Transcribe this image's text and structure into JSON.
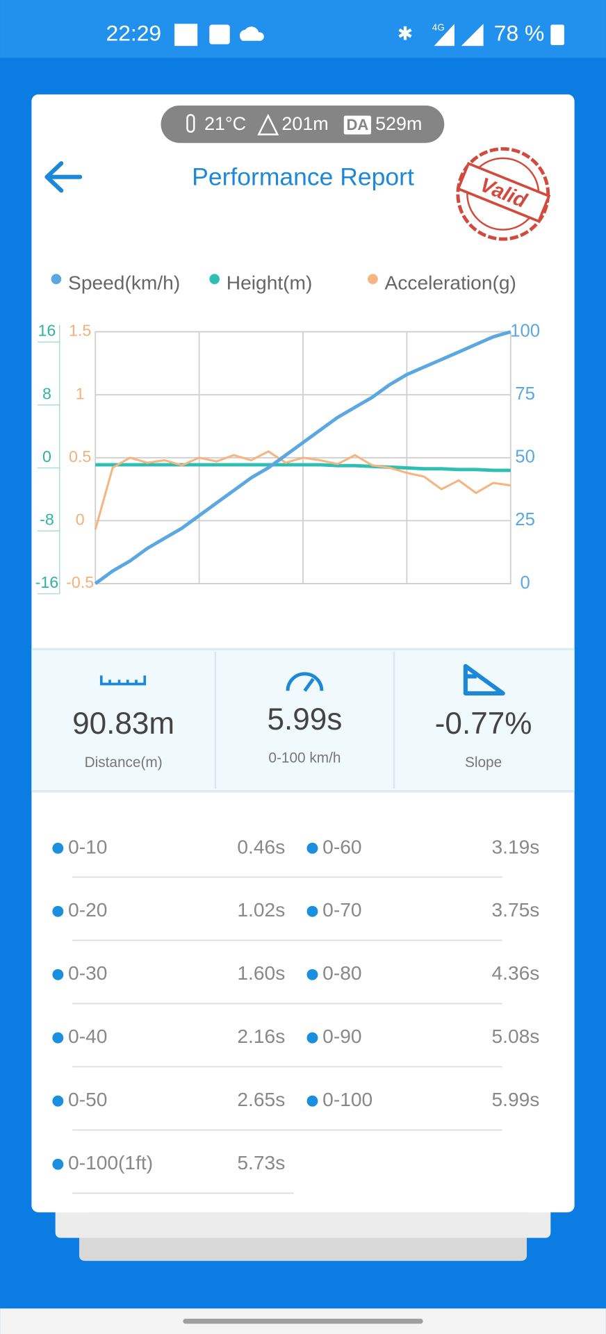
{
  "status_bar": {
    "time": "22:29",
    "network": "4G",
    "battery": "78 %"
  },
  "conditions": {
    "temperature": "21°C",
    "altitude": "201m",
    "da_label": "DA",
    "density_altitude": "529m"
  },
  "header": {
    "title": "Performance Report",
    "stamp": "Valid"
  },
  "chart_data": {
    "type": "line",
    "series": [
      {
        "name": "Speed(km/h)",
        "color": "#5aa7e2",
        "axis": "y2",
        "values": [
          0,
          5,
          9,
          14,
          18,
          22,
          27,
          32,
          37,
          42,
          46,
          51,
          56,
          61,
          66,
          70,
          74,
          79,
          83,
          86,
          89,
          92,
          95,
          98,
          100
        ]
      },
      {
        "name": "Height(m)",
        "color": "#2fbfb2",
        "values": [
          -0.9,
          -0.9,
          -0.9,
          -0.9,
          -0.9,
          -0.9,
          -0.9,
          -0.9,
          -0.9,
          -0.9,
          -0.9,
          -0.9,
          -0.9,
          -0.9,
          -1,
          -1,
          -1.1,
          -1.2,
          -1.3,
          -1.4,
          -1.4,
          -1.5,
          -1.5,
          -1.6,
          -1.6
        ]
      },
      {
        "name": "Acceleration(g)",
        "color": "#f6b580",
        "axis": "y3",
        "values": [
          -0.07,
          0.42,
          0.5,
          0.46,
          0.48,
          0.44,
          0.5,
          0.47,
          0.52,
          0.48,
          0.55,
          0.46,
          0.5,
          0.48,
          0.45,
          0.52,
          0.44,
          0.42,
          0.38,
          0.35,
          0.25,
          0.32,
          0.22,
          0.3,
          0.28
        ]
      }
    ],
    "ylim": [
      -16,
      16
    ],
    "yticks": [
      -16,
      -8,
      0,
      8,
      16
    ],
    "y2lim": [
      0,
      100
    ],
    "y2ticks": [
      0,
      25,
      50,
      75,
      100
    ],
    "y3lim": [
      -0.5,
      1.5
    ],
    "y3ticks": [
      -0.5,
      0,
      0.5,
      1,
      1.5
    ],
    "grid": true
  },
  "stats": [
    {
      "value": "90.83m",
      "label": "Distance(m)"
    },
    {
      "value": "5.99s",
      "label": "0-100 km/h"
    },
    {
      "value": "-0.77%",
      "label": "Slope"
    }
  ],
  "splits": [
    {
      "label": "0-10",
      "value": "0.46s"
    },
    {
      "label": "0-20",
      "value": "1.02s"
    },
    {
      "label": "0-30",
      "value": "1.60s"
    },
    {
      "label": "0-40",
      "value": "2.16s"
    },
    {
      "label": "0-50",
      "value": "2.65s"
    },
    {
      "label": "0-60",
      "value": "3.19s"
    },
    {
      "label": "0-70",
      "value": "3.75s"
    },
    {
      "label": "0-80",
      "value": "4.36s"
    },
    {
      "label": "0-90",
      "value": "5.08s"
    },
    {
      "label": "0-100",
      "value": "5.99s"
    },
    {
      "label": "0-100(1ft)",
      "value": "5.73s"
    }
  ]
}
